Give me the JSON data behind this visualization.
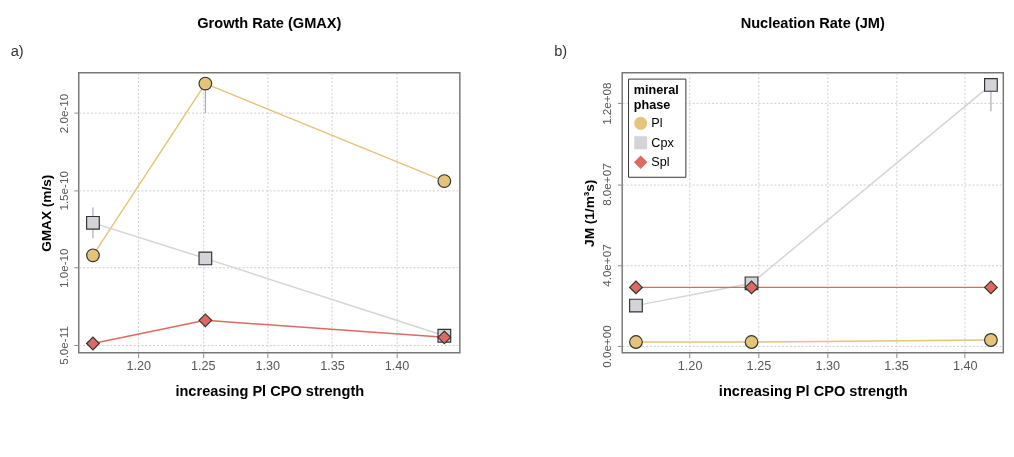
{
  "chart_data": [
    {
      "type": "line",
      "title": "Growth Rate (GMAX)",
      "annotations": [
        "a)"
      ],
      "xlabel": "increasing Pl CPO strength",
      "ylabel": "GMAX (m/s)",
      "xlim": [
        1.154,
        1.449
      ],
      "xticks": [
        {
          "value": 1.2,
          "label": "1.20"
        },
        {
          "value": 1.25,
          "label": "1.25"
        },
        {
          "value": 1.3,
          "label": "1.30"
        },
        {
          "value": 1.35,
          "label": "1.35"
        },
        {
          "value": 1.4,
          "label": "1.40"
        }
      ],
      "ylim": [
        4.5e-11,
        2.26e-10
      ],
      "yticks": [
        {
          "value": 5e-11,
          "label": "5.0e-11"
        },
        {
          "value": 1e-10,
          "label": "1.0e-10"
        },
        {
          "value": 1.5e-10,
          "label": "1.5e-10"
        },
        {
          "value": 2e-10,
          "label": "2.0e-10"
        }
      ],
      "grid": true,
      "legend": false,
      "x": [
        1.165,
        1.252,
        1.437
      ],
      "series": [
        {
          "color": "#e3c47a",
          "marker": "circle",
          "values": [
            1.08e-10,
            2.19e-10,
            1.56e-10
          ],
          "errors": [
            null,
            [
              2e-10,
              2.19e-10
            ],
            4e-12
          ]
        },
        {
          "color": "#d4d4d8",
          "marker": "square",
          "values": [
            1.29e-10,
            1.06e-10,
            5.6e-11
          ],
          "errors": [
            1e-11,
            null,
            null
          ]
        },
        {
          "color": "#dd6a62",
          "marker": "diamond",
          "values": [
            5.1e-11,
            6.6e-11,
            5.5e-11
          ]
        }
      ]
    },
    {
      "type": "line",
      "title": "Nucleation Rate (JM)",
      "annotations": [
        "b)"
      ],
      "xlabel": "increasing Pl CPO strength",
      "ylabel": "JM (1/m³s)",
      "legend_title": "mineral phase",
      "xlim": [
        1.151,
        1.428
      ],
      "xticks": [
        {
          "value": 1.2,
          "label": "1.20"
        },
        {
          "value": 1.25,
          "label": "1.25"
        },
        {
          "value": 1.3,
          "label": "1.30"
        },
        {
          "value": 1.35,
          "label": "1.35"
        },
        {
          "value": 1.4,
          "label": "1.40"
        }
      ],
      "ylim": [
        -3300000.0,
        135000000.0
      ],
      "yticks": [
        {
          "value": 0,
          "label": "0.0e+00"
        },
        {
          "value": 40000000.0,
          "label": "4.0e+07"
        },
        {
          "value": 80000000.0,
          "label": "8.0e+07"
        },
        {
          "value": 120000000.0,
          "label": "1.2e+08"
        }
      ],
      "grid": true,
      "legend": "top left",
      "x": [
        1.161,
        1.245,
        1.419
      ],
      "series": [
        {
          "name": "Pl",
          "color": "#e3c47a",
          "marker": "circle",
          "values": [
            2000000.0,
            2000000.0,
            3000000.0
          ]
        },
        {
          "name": "Cpx",
          "color": "#d4d4d8",
          "marker": "square",
          "values": [
            20000000.0,
            31000000.0,
            129000000.0
          ],
          "errors": [
            null,
            null,
            [
              116000000.0,
              129000000.0
            ]
          ]
        },
        {
          "name": "Spl",
          "color": "#dd6a62",
          "marker": "diamond",
          "values": [
            29000000.0,
            29000000.0,
            29000000.0
          ]
        }
      ]
    }
  ]
}
